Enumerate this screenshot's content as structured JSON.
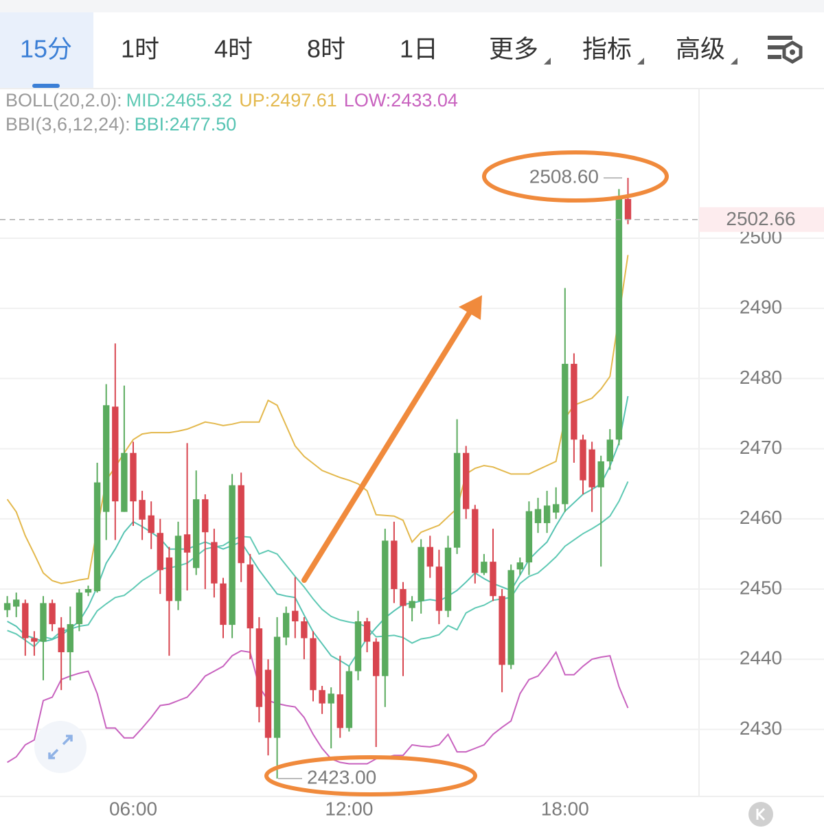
{
  "tabs": [
    {
      "label": "15分"
    },
    {
      "label": "1时"
    },
    {
      "label": "4时"
    },
    {
      "label": "8时"
    },
    {
      "label": "1日"
    },
    {
      "label": "更多",
      "menu": true
    },
    {
      "label": "指标",
      "menu": true
    },
    {
      "label": "高级",
      "menu": true
    }
  ],
  "active_tab": 0,
  "chart_data": {
    "type": "candlestick",
    "categories": [
      null,
      null,
      null,
      null,
      null,
      null,
      null,
      null,
      null,
      null,
      null,
      null,
      null,
      null,
      "06:00",
      null,
      null,
      null,
      null,
      null,
      null,
      null,
      null,
      null,
      null,
      null,
      null,
      null,
      null,
      null,
      null,
      null,
      null,
      null,
      null,
      null,
      null,
      null,
      "12:00",
      null,
      null,
      null,
      null,
      null,
      null,
      null,
      null,
      null,
      null,
      null,
      null,
      null,
      null,
      null,
      null,
      null,
      null,
      null,
      null,
      null,
      null,
      null,
      "18:00",
      null,
      null,
      null,
      null,
      null,
      null,
      null
    ],
    "open": [
      2447,
      2447.5,
      2448,
      2443,
      2442.5,
      2448,
      2444.5,
      2441,
      2445,
      2449.5,
      2449.7,
      2461,
      2476,
      2461,
      2469.4,
      2462.7,
      2460.5,
      2458,
      2454.5,
      2448.3,
      2457.8,
      2453,
      2462.8,
      2456.7,
      2450.8,
      2444.9,
      2464.8,
      2453.5,
      2444.4,
      2438.5,
      2428.8,
      2443.1,
      2446.9,
      2445.4,
      2443,
      2435.6,
      2433.7,
      2435,
      2430.2,
      2438.3,
      2445.4,
      2442.5,
      2437.6,
      2456.9,
      2450,
      2447.3,
      2448.3,
      2456,
      2453.2,
      2446.9,
      2455.9,
      2469.4,
      2461.4,
      2452.3,
      2453.9,
      2449,
      2439.2,
      2452.8,
      2453.8,
      2459.4,
      2459.4,
      2460.9,
      2462.1,
      2482.1,
      2471.3,
      2469.9,
      2464.5,
      2468.2,
      2471.3,
      2505.6
    ],
    "high": [
      2449,
      2449.5,
      2448.5,
      2444,
      2449,
      2448.5,
      2446,
      2447.5,
      2450,
      2450.5,
      2468,
      2479.2,
      2485,
      2479,
      2471,
      2464,
      2462.5,
      2460,
      2456,
      2459.6,
      2470.8,
      2466.9,
      2463.5,
      2458.6,
      2451.6,
      2466.4,
      2466.6,
      2455,
      2446,
      2440,
      2446,
      2447.5,
      2451.7,
      2446,
      2444,
      2436.2,
      2436,
      2440.5,
      2439,
      2446.9,
      2445.9,
      2443,
      2458.6,
      2459.6,
      2451,
      2449,
      2457.1,
      2457.6,
      2455.6,
      2457.6,
      2474.2,
      2470.4,
      2462,
      2455,
      2458.6,
      2450,
      2453.5,
      2454.5,
      2462.5,
      2463,
      2464,
      2464.5,
      2492.9,
      2483.6,
      2472,
      2471,
      2469,
      2472.8,
      2507,
      2508.6
    ],
    "low": [
      2446,
      2446,
      2440.5,
      2440.5,
      2437,
      2444,
      2435.6,
      2437,
      2444,
      2449,
      2449.5,
      2457,
      2457,
      2461,
      2459,
      2457,
      2455.7,
      2449.3,
      2440.5,
      2447,
      2449.8,
      2452,
      2450,
      2448.8,
      2443,
      2443,
      2451,
      2440,
      2431,
      2426.3,
      2423,
      2442,
      2443,
      2440,
      2434,
      2432.2,
      2427.3,
      2428.8,
      2429.7,
      2437,
      2441,
      2427.5,
      2433.2,
      2448,
      2437.6,
      2445.4,
      2446.5,
      2451.6,
      2445,
      2446,
      2455,
      2460,
      2450.8,
      2452,
      2448.3,
      2435.3,
      2438.6,
      2452,
      2452,
      2458,
      2458,
      2460,
      2461,
      2468,
      2463.5,
      2461,
      2453.2,
      2467,
      2470.5,
      2502
    ],
    "close": [
      2448,
      2448.5,
      2443,
      2442.5,
      2448,
      2445,
      2441,
      2445,
      2449.5,
      2450,
      2465.2,
      2476.2,
      2462.5,
      2469.4,
      2462.5,
      2459.9,
      2458,
      2452.7,
      2448.3,
      2457.6,
      2455.2,
      2462.8,
      2458.1,
      2450.8,
      2444.9,
      2464.8,
      2453.7,
      2444.4,
      2433.2,
      2428.8,
      2443.2,
      2446.6,
      2445.4,
      2443,
      2435.6,
      2433.7,
      2435.1,
      2430.2,
      2438.3,
      2445.4,
      2442.5,
      2437.6,
      2456.9,
      2450,
      2447.6,
      2448.3,
      2456,
      2453.2,
      2446.9,
      2455.9,
      2469.4,
      2461.4,
      2452.3,
      2453.9,
      2449,
      2439.2,
      2452.7,
      2453.8,
      2461.1,
      2461.4,
      2461.9,
      2462.1,
      2482.1,
      2471.3,
      2465.5,
      2464.5,
      2468.2,
      2471.3,
      2505.6,
      2502.66
    ],
    "up_color": "#5aab5e",
    "down_color": "#d8454f",
    "indicators": [
      {
        "label": "BOLL(20,2.0):",
        "series": [
          {
            "name": "MID:2465.32",
            "color": "#5fc9b4",
            "values": [
              2444.1,
              2443.6,
              2442.7,
              2441.8,
              2443.2,
              2442.9,
              2444,
              2444.3,
              2444.7,
              2444.9,
              2446.9,
              2447.9,
              2448.8,
              2449.1,
              2450.1,
              2451.2,
              2452,
              2452.9,
              2453,
              2453.3,
              2453.7,
              2454.7,
              2455.7,
              2456,
              2456.2,
              2457,
              2457.5,
              2457.4,
              2455,
              2455.5,
              2455,
              2453.4,
              2451.8,
              2450.3,
              2448.6,
              2447.1,
              2446.1,
              2445.6,
              2445.3,
              2445.1,
              2444.6,
              2443.2,
              2443.3,
              2443.4,
              2443.1,
              2442.3,
              2442.9,
              2443.1,
              2443.5,
              2444.8,
              2444.2,
              2446.6,
              2447.3,
              2447.7,
              2448.4,
              2448.6,
              2448.8,
              2450.8,
              2451.8,
              2452.3,
              2453.4,
              2454.6,
              2456.1,
              2457,
              2457.9,
              2458.6,
              2459.4,
              2460.4,
              2462.5,
              2465.32
            ]
          },
          {
            "name": "UP:2497.61",
            "color": "#e3b84c",
            "values": [
              2462.8,
              2461,
              2457.6,
              2455,
              2452.3,
              2451.2,
              2450.8,
              2451,
              2451.3,
              2451.5,
              2458.6,
              2465.5,
              2467.4,
              2469.4,
              2471.3,
              2472.1,
              2472.3,
              2472.3,
              2472.3,
              2472.5,
              2472.8,
              2473.3,
              2473.8,
              2473.6,
              2473.3,
              2473.5,
              2473.8,
              2473.8,
              2473.8,
              2476.9,
              2476.2,
              2473.3,
              2470.4,
              2468.9,
              2467.9,
              2466.9,
              2466.4,
              2465.9,
              2465.5,
              2465,
              2464,
              2460.6,
              2460.5,
              2460.4,
              2459.8,
              2456.7,
              2458.1,
              2458.6,
              2459.1,
              2460.3,
              2461.5,
              2466.4,
              2467.2,
              2467.6,
              2467.4,
              2466.9,
              2466.4,
              2466.4,
              2466.4,
              2467,
              2467.6,
              2468.2,
              2474.3,
              2476.2,
              2476.7,
              2477.2,
              2478.5,
              2480.3,
              2488.9,
              2497.61
            ]
          },
          {
            "name": "LOW:2433.04",
            "color": "#c862bf",
            "values": [
              2425.3,
              2426.1,
              2427.8,
              2428.5,
              2434.1,
              2434.6,
              2437.1,
              2437.6,
              2438,
              2438.3,
              2435.1,
              2430.2,
              2430.2,
              2428.8,
              2428.8,
              2430.2,
              2431.7,
              2433.4,
              2433.6,
              2434.1,
              2434.6,
              2436,
              2437.6,
              2438.3,
              2439,
              2440.5,
              2441.2,
              2441,
              2436.1,
              2434.1,
              2433.7,
              2433.4,
              2433.2,
              2431.7,
              2429.3,
              2427.3,
              2425.8,
              2425.3,
              2425.1,
              2425.1,
              2425.1,
              2425.8,
              2426,
              2426.3,
              2426.3,
              2427.8,
              2427.6,
              2427.5,
              2427.8,
              2429.3,
              2426.8,
              2426.8,
              2427.3,
              2427.8,
              2429.3,
              2430.3,
              2431.2,
              2435.1,
              2437.1,
              2437.6,
              2439.2,
              2441,
              2437.8,
              2437.8,
              2439,
              2440,
              2440.3,
              2440.5,
              2436.1,
              2433.04
            ]
          }
        ]
      },
      {
        "label": "BBI(3,6,12,24):",
        "series": [
          {
            "name": "BBI:2477.50",
            "color": "#56c3b2",
            "values": [
              2445.4,
              2444.7,
              2443.4,
              2443,
              2442.5,
              2442.8,
              2443.4,
              2444.4,
              2445.4,
              2447.5,
              2450.3,
              2453.7,
              2455.7,
              2458.1,
              2459.6,
              2458.9,
              2458.1,
              2457.2,
              2455.7,
              2455.7,
              2455.7,
              2456.2,
              2456.7,
              2456.2,
              2455.7,
              2456.2,
              2456.7,
              2454.7,
              2452.7,
              2451,
              2449.3,
              2449,
              2448.8,
              2446.3,
              2443.9,
              2442.2,
              2440.5,
              2439.8,
              2439,
              2441,
              2443,
              2444.5,
              2445.9,
              2446.9,
              2447.8,
              2448,
              2448.3,
              2448.5,
              2448.3,
              2449,
              2449.8,
              2451,
              2452.3,
              2451.5,
              2450.8,
              2450.3,
              2449.8,
              2452,
              2454.2,
              2455.5,
              2456.7,
              2459,
              2461.1,
              2462.3,
              2463.5,
              2464.2,
              2465,
              2467.5,
              2470.8,
              2477.5
            ]
          }
        ]
      }
    ],
    "ylim": [
      2420.45,
      2521.23
    ],
    "yticks": [
      2430,
      2440,
      2450,
      2460,
      2470,
      2480,
      2490,
      2500
    ],
    "grid": true,
    "high_marker": {
      "value": 2508.6,
      "label": "2508.60"
    },
    "low_marker": {
      "value": 2423.0,
      "label": "2423.00"
    },
    "last_price": {
      "value": 2502.66,
      "label": "2502.66"
    }
  }
}
